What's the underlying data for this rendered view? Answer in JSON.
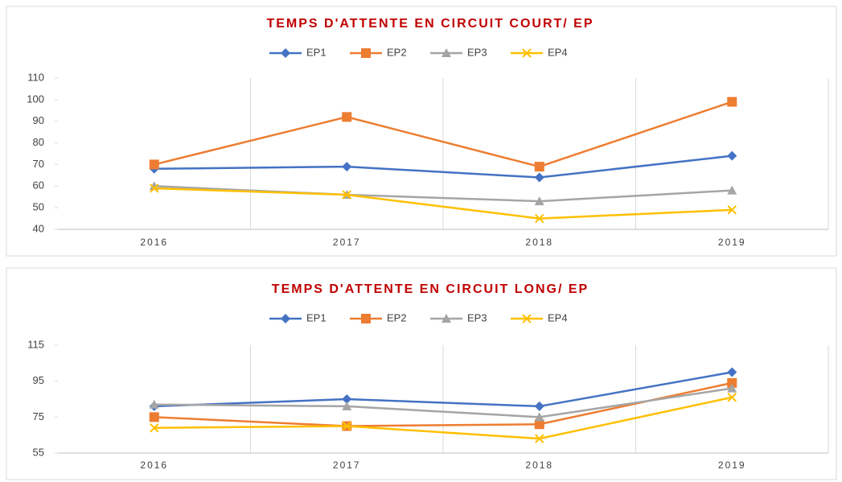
{
  "chart_data": [
    {
      "type": "line",
      "title": "TEMPS D'ATTENTE EN CIRCUIT COURT/ EP",
      "categories": [
        "2016",
        "2017",
        "2018",
        "2019"
      ],
      "series": [
        {
          "name": "EP1",
          "color": "#4472c4",
          "marker": "diamond",
          "values": [
            68,
            69,
            64,
            74
          ]
        },
        {
          "name": "EP2",
          "color": "#ed7d31",
          "marker": "square",
          "values": [
            70,
            92,
            69,
            99
          ]
        },
        {
          "name": "EP3",
          "color": "#a5a5a5",
          "marker": "triangle",
          "values": [
            60,
            56,
            53,
            58
          ]
        },
        {
          "name": "EP4",
          "color": "#ffc000",
          "marker": "x",
          "values": [
            59,
            56,
            45,
            49
          ]
        }
      ],
      "ylim": [
        40,
        110
      ],
      "yticks": [
        40,
        50,
        60,
        70,
        80,
        90,
        100,
        110
      ],
      "legend": "top"
    },
    {
      "type": "line",
      "title": "TEMPS D'ATTENTE EN CIRCUIT LONG/ EP",
      "categories": [
        "2016",
        "2017",
        "2018",
        "2019"
      ],
      "series": [
        {
          "name": "EP1",
          "color": "#4472c4",
          "marker": "diamond",
          "values": [
            81,
            85,
            81,
            100
          ]
        },
        {
          "name": "EP2",
          "color": "#ed7d31",
          "marker": "square",
          "values": [
            75,
            70,
            71,
            94
          ]
        },
        {
          "name": "EP3",
          "color": "#a5a5a5",
          "marker": "triangle",
          "values": [
            82,
            81,
            75,
            91
          ]
        },
        {
          "name": "EP4",
          "color": "#ffc000",
          "marker": "x",
          "values": [
            69,
            70,
            63,
            86
          ]
        }
      ],
      "ylim": [
        55,
        115
      ],
      "yticks": [
        55,
        75,
        95,
        115
      ],
      "legend": "top"
    }
  ]
}
